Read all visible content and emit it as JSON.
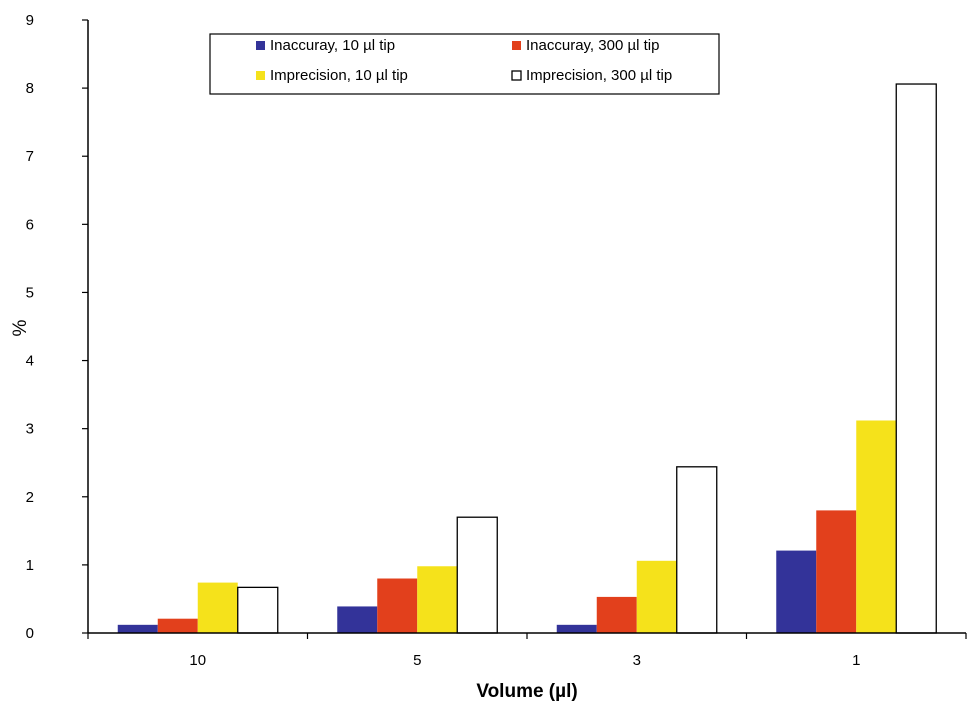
{
  "chart_data": {
    "type": "bar",
    "title": "",
    "xlabel": "Volume (µl)",
    "ylabel": "%",
    "ylim": [
      0,
      9
    ],
    "yticks": [
      0,
      1,
      2,
      3,
      4,
      5,
      6,
      7,
      8,
      9
    ],
    "categories": [
      "10",
      "5",
      "3",
      "1"
    ],
    "grid": false,
    "legend_placement": "top-center",
    "series": [
      {
        "name": "Inaccuray, 10 µl tip",
        "color": "#333399",
        "values": [
          0.12,
          0.39,
          0.12,
          1.21
        ]
      },
      {
        "name": "Inaccuray, 300 µl tip",
        "color": "#e2401c",
        "values": [
          0.21,
          0.8,
          0.53,
          1.8
        ]
      },
      {
        "name": "Imprecision, 10 µl tip",
        "color": "#f5e21b",
        "values": [
          0.74,
          0.98,
          1.06,
          3.12
        ]
      },
      {
        "name": "Imprecision, 300 µl tip",
        "color": "#ffffff",
        "values": [
          0.67,
          1.7,
          2.44,
          8.06
        ]
      }
    ]
  }
}
